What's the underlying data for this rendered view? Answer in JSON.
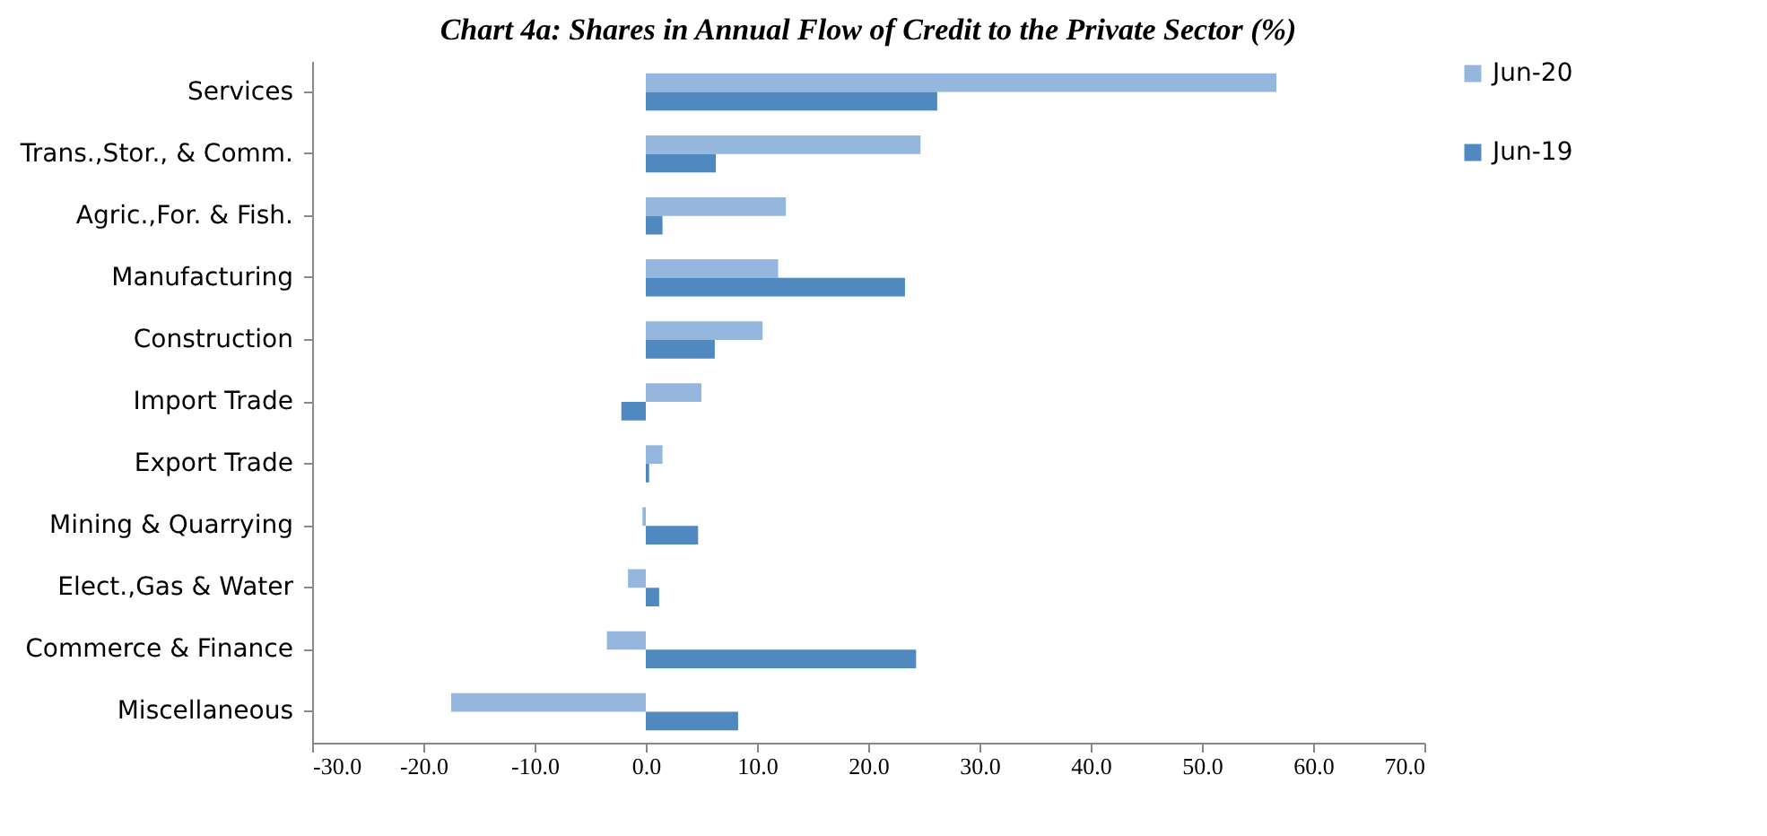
{
  "chart_data": {
    "type": "bar",
    "orientation": "horizontal",
    "title": "Chart 4a: Shares in Annual Flow of Credit to the Private Sector (%)",
    "categories": [
      "Services",
      "Trans.,Stor., & Comm.",
      "Agric.,For. & Fish.",
      "Manufacturing",
      "Construction",
      "Import Trade",
      "Export Trade",
      "Mining & Quarrying",
      "Elect.,Gas & Water",
      "Commerce & Finance",
      "Miscellaneous"
    ],
    "series": [
      {
        "name": "Jun-20",
        "color": "#95b7de",
        "values": [
          56.7,
          24.7,
          12.6,
          11.9,
          10.5,
          5.0,
          1.5,
          -0.3,
          -1.6,
          -3.5,
          -17.5
        ]
      },
      {
        "name": "Jun-19",
        "color": "#4f89bf",
        "values": [
          26.2,
          6.3,
          1.5,
          23.3,
          6.2,
          -2.2,
          0.3,
          4.7,
          1.2,
          24.3,
          8.3
        ]
      }
    ],
    "xlim": [
      -30,
      70
    ],
    "xticks": [
      {
        "value": -30,
        "label": "-30.0"
      },
      {
        "value": -20,
        "label": "-20.0"
      },
      {
        "value": -10,
        "label": "-10.0"
      },
      {
        "value": 0,
        "label": "0.0"
      },
      {
        "value": 10,
        "label": "10.0"
      },
      {
        "value": 20,
        "label": "20.0"
      },
      {
        "value": 30,
        "label": "30.0"
      },
      {
        "value": 40,
        "label": "40.0"
      },
      {
        "value": 50,
        "label": "50.0"
      },
      {
        "value": 60,
        "label": "60.0"
      },
      {
        "value": 70,
        "label": "70.0"
      }
    ],
    "grid": false,
    "legend": "right"
  }
}
